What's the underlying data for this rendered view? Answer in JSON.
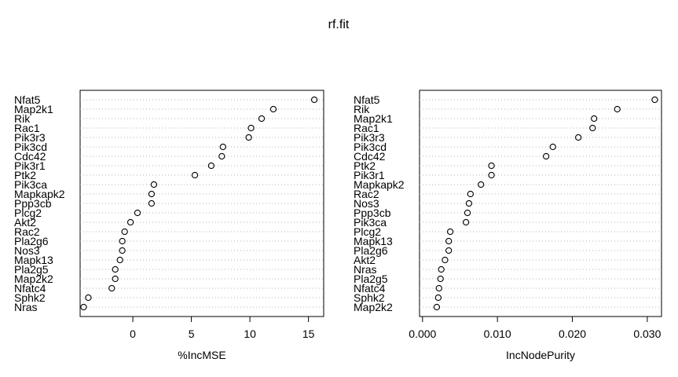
{
  "figure": {
    "title": "rf.fit"
  },
  "chart_data": [
    {
      "type": "scatter",
      "variant": "dotchart",
      "title": "",
      "xlabel": "%IncMSE",
      "ylabel": "",
      "xlim": [
        -4.5,
        16.3
      ],
      "xticks": [
        0,
        5,
        10,
        15
      ],
      "grid": true,
      "categories": [
        "Nfat5",
        "Map2k1",
        "Rik",
        "Rac1",
        "Pik3r3",
        "Pik3cd",
        "Cdc42",
        "Pik3r1",
        "Ptk2",
        "Pik3ca",
        "Mapkapk2",
        "Ppp3cb",
        "Plcg2",
        "Akt2",
        "Rac2",
        "Pla2g6",
        "Nos3",
        "Mapk13",
        "Pla2g5",
        "Map2k2",
        "Nfatc4",
        "Sphk2",
        "Nras"
      ],
      "values": [
        15.5,
        12.0,
        11.0,
        10.1,
        9.9,
        7.7,
        7.6,
        6.7,
        5.3,
        1.8,
        1.6,
        1.6,
        0.4,
        -0.2,
        -0.7,
        -0.9,
        -0.9,
        -1.1,
        -1.5,
        -1.5,
        -1.8,
        -3.8,
        -4.2
      ]
    },
    {
      "type": "scatter",
      "variant": "dotchart",
      "title": "",
      "xlabel": "IncNodePurity",
      "ylabel": "",
      "xlim": [
        -0.0004,
        0.0319
      ],
      "xticks": [
        0.0,
        0.01,
        0.02,
        0.03
      ],
      "xticklabels": [
        "0.000",
        "0.010",
        "0.020",
        "0.030"
      ],
      "grid": true,
      "categories": [
        "Nfat5",
        "Rik",
        "Map2k1",
        "Rac1",
        "Pik3r3",
        "Pik3cd",
        "Cdc42",
        "Ptk2",
        "Pik3r1",
        "Mapkapk2",
        "Rac2",
        "Nos3",
        "Ppp3cb",
        "Pik3ca",
        "Plcg2",
        "Mapk13",
        "Pla2g6",
        "Akt2",
        "Nras",
        "Pla2g5",
        "Nfatc4",
        "Sphk2",
        "Map2k2"
      ],
      "values": [
        0.031,
        0.026,
        0.0229,
        0.0227,
        0.0208,
        0.0174,
        0.0165,
        0.0092,
        0.0092,
        0.0078,
        0.0064,
        0.0062,
        0.006,
        0.0058,
        0.0037,
        0.0035,
        0.0035,
        0.003,
        0.0025,
        0.0024,
        0.0022,
        0.0021,
        0.0019
      ]
    }
  ]
}
